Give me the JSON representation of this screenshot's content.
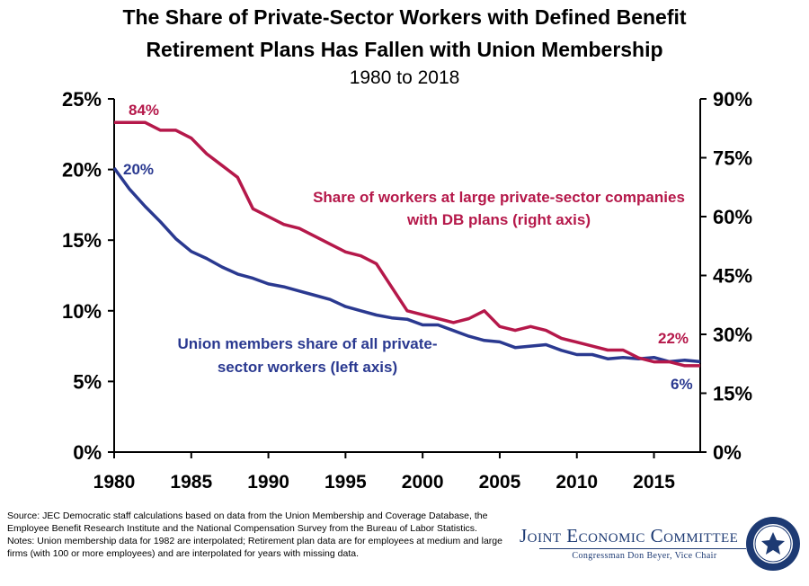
{
  "chart_data": {
    "type": "line",
    "title": "The Share of Private-Sector Workers with Defined Benefit",
    "title_line2": "Retirement Plans Has Fallen with Union Membership",
    "subtitle": "1980 to 2018",
    "x": [
      1980,
      1981,
      1982,
      1983,
      1984,
      1985,
      1986,
      1987,
      1988,
      1989,
      1990,
      1991,
      1992,
      1993,
      1994,
      1995,
      1996,
      1997,
      1998,
      1999,
      2000,
      2001,
      2002,
      2003,
      2004,
      2005,
      2006,
      2007,
      2008,
      2009,
      2010,
      2011,
      2012,
      2013,
      2014,
      2015,
      2016,
      2017,
      2018
    ],
    "xticks": [
      1980,
      1985,
      1990,
      1995,
      2000,
      2005,
      2010,
      2015
    ],
    "xlim": [
      1980,
      2018
    ],
    "left_axis": {
      "ylim": [
        0,
        25
      ],
      "ticks": [
        0,
        5,
        10,
        15,
        20,
        25
      ],
      "tick_labels": [
        "0%",
        "5%",
        "10%",
        "15%",
        "20%",
        "25%"
      ]
    },
    "right_axis": {
      "ylim": [
        0,
        90
      ],
      "ticks": [
        0,
        15,
        30,
        45,
        60,
        75,
        90
      ],
      "tick_labels": [
        "0%",
        "15%",
        "30%",
        "45%",
        "60%",
        "75%",
        "90%"
      ]
    },
    "series": [
      {
        "name": "Union members share of all private-sector workers (left axis)",
        "label_line1": "Union members share of all private-",
        "label_line2": "sector workers (left axis)",
        "axis": "left",
        "color": "#2a3990",
        "values": [
          20.1,
          18.6,
          17.4,
          16.3,
          15.1,
          14.2,
          13.7,
          13.1,
          12.6,
          12.3,
          11.9,
          11.7,
          11.4,
          11.1,
          10.8,
          10.3,
          10.0,
          9.7,
          9.5,
          9.4,
          9.0,
          9.0,
          8.6,
          8.2,
          7.9,
          7.8,
          7.4,
          7.5,
          7.6,
          7.2,
          6.9,
          6.9,
          6.6,
          6.7,
          6.6,
          6.7,
          6.4,
          6.5,
          6.4
        ],
        "start_label": "20%",
        "end_label": "6%"
      },
      {
        "name": "Share of workers at large private-sector companies with DB plans (right axis)",
        "label_line1": "Share of workers at large private-sector companies",
        "label_line2": "with DB plans (right axis)",
        "axis": "right",
        "color": "#b5184a",
        "values": [
          84,
          84,
          84,
          82,
          82,
          80,
          76,
          73,
          70,
          62,
          60,
          58,
          57,
          55,
          53,
          51,
          50,
          48,
          42,
          36,
          35,
          34,
          33,
          34,
          36,
          32,
          31,
          32,
          31,
          29,
          28,
          27,
          26,
          26,
          24,
          23,
          23,
          22,
          22
        ],
        "start_label": "84%",
        "end_label": "22%"
      }
    ]
  },
  "notes": {
    "source": "Source: JEC Democratic staff calculations based on data from the Union Membership and Coverage Database, the Employee Benefit Research Institute and the National Compensation Survey from the Bureau of Labor Statistics.",
    "notes": "Notes: Union membership data for 1982 are interpolated; Retirement plan data are for employees at medium and large firms (with 100 or more employees) and are interpolated for years with missing data."
  },
  "logo": {
    "name": "Joint Economic Committee",
    "subtitle": "Congressman Don Beyer, Vice Chair",
    "color": "#1d3a73"
  }
}
